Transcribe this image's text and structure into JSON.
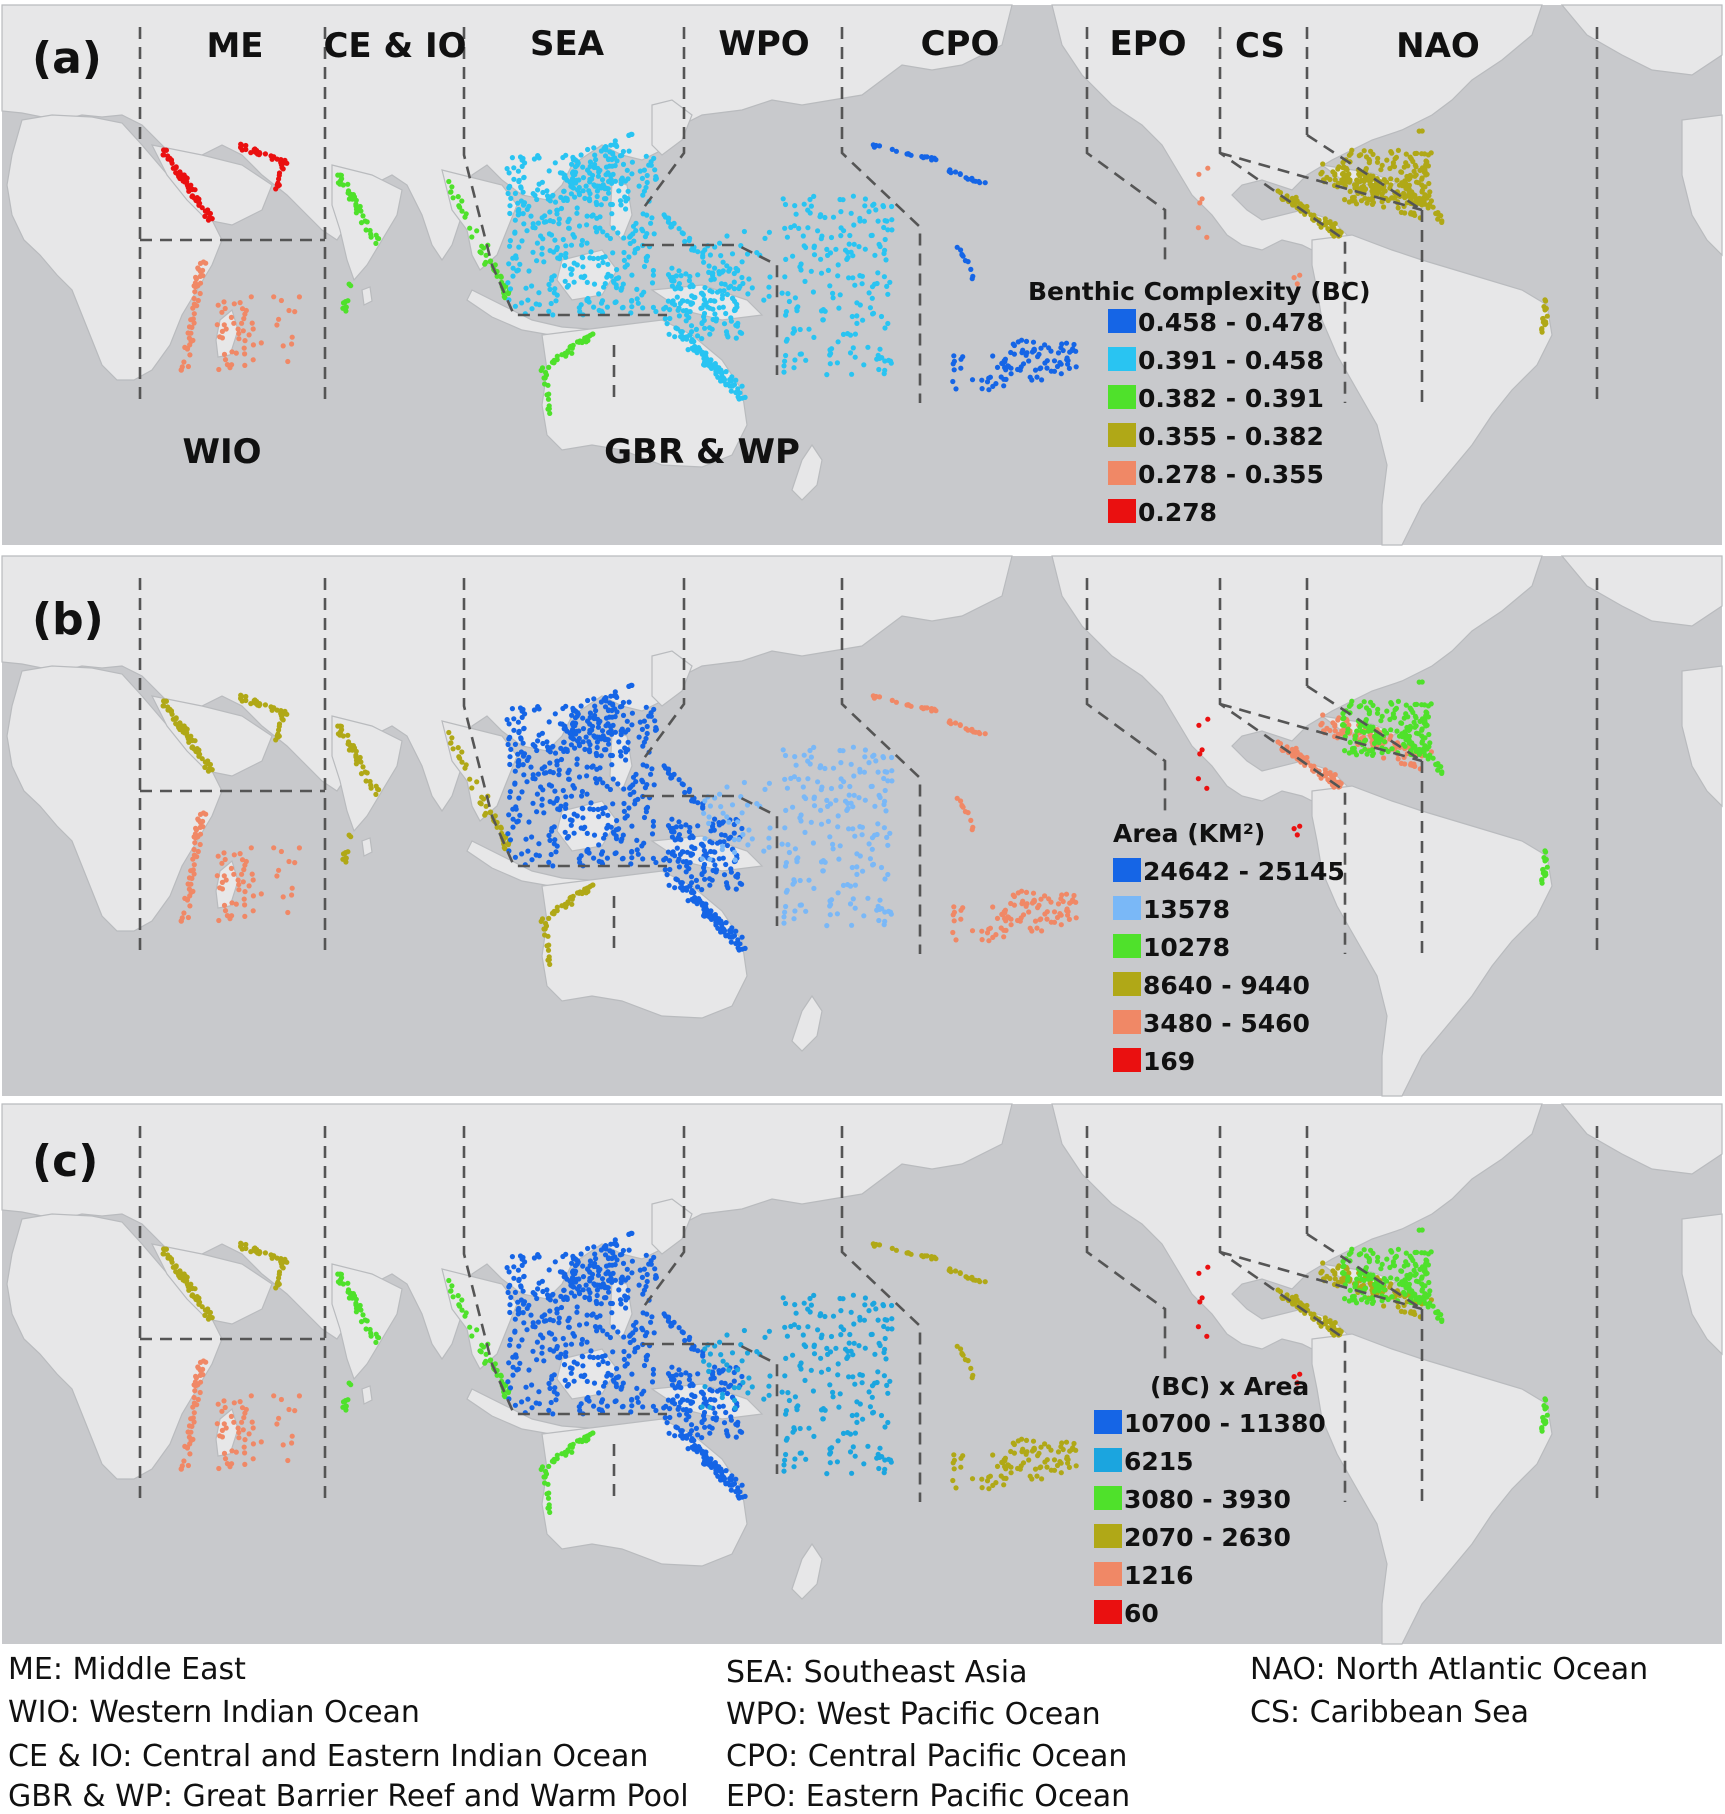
{
  "figure": {
    "panels": [
      {
        "letter": "(a)",
        "legend": {
          "title": "Benthic Complexity (BC)",
          "items": [
            {
              "label": "0.458 - 0.478",
              "color": "#1565e6"
            },
            {
              "label": "0.391 - 0.458",
              "color": "#29c4f2"
            },
            {
              "label": "0.382 - 0.391",
              "color": "#4fe12b"
            },
            {
              "label": "0.355 - 0.382",
              "color": "#b0a817"
            },
            {
              "label": "0.278 - 0.355",
              "color": "#f08866"
            },
            {
              "label": "0.278",
              "color": "#ea1010"
            }
          ]
        },
        "region_colors": {
          "ME": "#ea1010",
          "WIO": "#f08866",
          "CEIO": "#4fe12b",
          "SEA": "#29c4f2",
          "GBR": "#29c4f2",
          "WPO": "#29c4f2",
          "CPO": "#1565e6",
          "EPO": "#f08866",
          "CS": "#b0a817",
          "NAO": "#b0a817",
          "WAUS": "#4fe12b"
        }
      },
      {
        "letter": "(b)",
        "legend": {
          "title": "Area (KM²)",
          "items": [
            {
              "label": "24642 - 25145",
              "color": "#1565e6"
            },
            {
              "label": "13578",
              "color": "#7ab8f7"
            },
            {
              "label": "10278",
              "color": "#4fe12b"
            },
            {
              "label": "8640 - 9440",
              "color": "#b0a817"
            },
            {
              "label": "3480 - 5460",
              "color": "#f08866"
            },
            {
              "label": "169",
              "color": "#ea1010"
            }
          ]
        },
        "region_colors": {
          "ME": "#b0a817",
          "WIO": "#f08866",
          "CEIO": "#b0a817",
          "SEA": "#1565e6",
          "GBR": "#1565e6",
          "WPO": "#7ab8f7",
          "CPO": "#f08866",
          "EPO": "#ea1010",
          "CS": "#f08866",
          "NAO": "#4fe12b",
          "WAUS": "#b0a817"
        }
      },
      {
        "letter": "(c)",
        "legend": {
          "title": "(BC)  x Area",
          "items": [
            {
              "label": "10700 - 11380",
              "color": "#1565e6"
            },
            {
              "label": "6215",
              "color": "#1ba5df"
            },
            {
              "label": "3080 - 3930",
              "color": "#4fe12b"
            },
            {
              "label": "2070 - 2630",
              "color": "#b0a817"
            },
            {
              "label": "1216",
              "color": "#f08866"
            },
            {
              "label": "60",
              "color": "#ea1010"
            }
          ]
        },
        "region_colors": {
          "ME": "#b0a817",
          "WIO": "#f08866",
          "CEIO": "#4fe12b",
          "SEA": "#1565e6",
          "GBR": "#1565e6",
          "WPO": "#1ba5df",
          "CPO": "#b0a817",
          "EPO": "#ea1010",
          "CS": "#b0a817",
          "NAO": "#4fe12b",
          "WAUS": "#4fe12b"
        }
      }
    ],
    "region_labels": [
      {
        "id": "ME",
        "text": "ME"
      },
      {
        "id": "CEIO",
        "text": "CE & IO"
      },
      {
        "id": "SEA",
        "text": "SEA"
      },
      {
        "id": "WPO",
        "text": "WPO"
      },
      {
        "id": "CPO",
        "text": "CPO"
      },
      {
        "id": "EPO",
        "text": "EPO"
      },
      {
        "id": "CS",
        "text": "CS"
      },
      {
        "id": "NAO",
        "text": "NAO"
      },
      {
        "id": "WIO",
        "text": "WIO"
      },
      {
        "id": "GBR",
        "text": "GBR & WP"
      }
    ],
    "colors": {
      "ocean": "#c8c9cc",
      "land": "#e7e7e8",
      "border": "#b9bbbe",
      "divider": "#555555"
    }
  },
  "abbreviations": {
    "col1": [
      "ME: Middle East",
      "WIO: Western Indian Ocean",
      "CE & IO: Central and Eastern Indian Ocean",
      "GBR & WP:  Great Barrier Reef and Warm Pool"
    ],
    "col2": [
      "SEA: Southeast Asia",
      "WPO: West Pacific Ocean",
      "CPO: Central Pacific Ocean",
      "EPO: Eastern Pacific Ocean"
    ],
    "col3": [
      "NAO: North Atlantic Ocean",
      "CS: Caribbean Sea"
    ]
  }
}
